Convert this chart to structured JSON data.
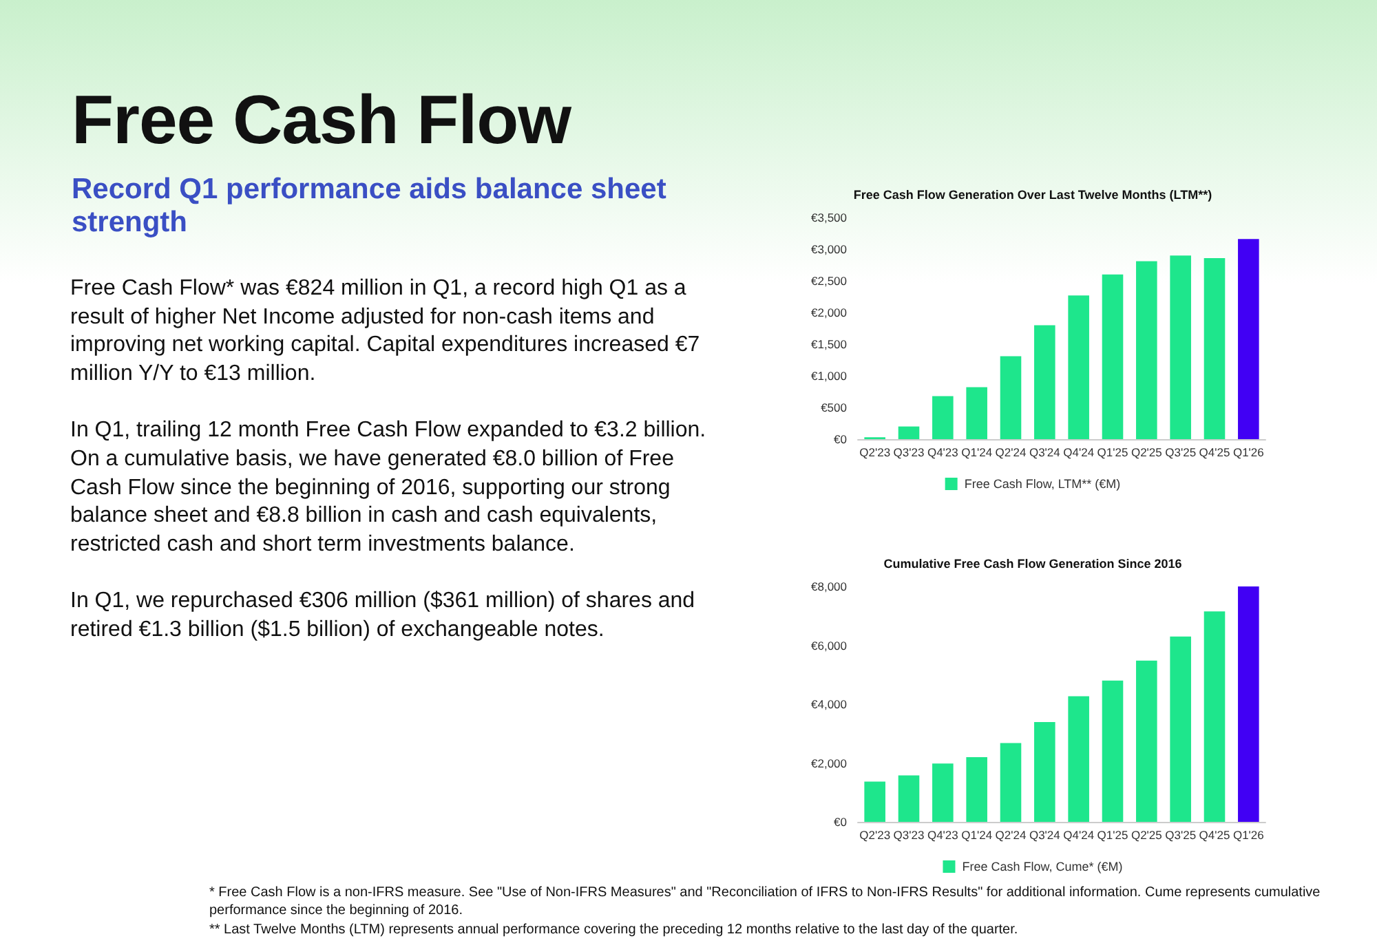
{
  "chart_data": [
    {
      "type": "other",
      "title": "Free Cash Flow",
      "subtitle": "Record Q1 performance aids balance sheet strength",
      "annotations": [
        "Free Cash Flow* was €824 million in Q1, a record high Q1 as a result of higher Net Income adjusted for non-cash items and improving net working capital. Capital expenditures increased €7 million Y/Y to €13 million.",
        "In Q1, trailing 12 month Free Cash Flow expanded to €3.2 billion. On a cumulative basis, we have generated €8.0 billion of Free Cash Flow since the beginning of 2016, supporting our strong balance sheet and €8.8 billion in cash and cash equivalents, restricted cash and short term investments balance.",
        "In Q1, we repurchased €306 million ($361 million) of shares and retired €1.3 billion ($1.5 billion) of exchangeable notes."
      ]
    },
    {
      "type": "bar",
      "title": "Free Cash Flow Generation Over Last Twelve Months (LTM**)",
      "categories": [
        "Q2'23",
        "Q3'23",
        "Q4'23",
        "Q1'24",
        "Q2'24",
        "Q3'24",
        "Q4'24",
        "Q1'25",
        "Q2'25",
        "Q3'25",
        "Q4'25",
        "Q1'26"
      ],
      "series": [
        {
          "name": "Free Cash Flow, LTM** (€M)",
          "color": "#1ee68c",
          "colors": [
            "#1ee68c",
            "#1ee68c",
            "#1ee68c",
            "#1ee68c",
            "#1ee68c",
            "#1ee68c",
            "#1ee68c",
            "#1ee68c",
            "#1ee68c",
            "#1ee68c",
            "#1ee68c",
            "#4100f4"
          ],
          "values": [
            30,
            200,
            680,
            820,
            1310,
            1800,
            2270,
            2600,
            2810,
            2900,
            2860,
            3160
          ]
        }
      ],
      "ylim": [
        0,
        3500
      ],
      "yticks": [
        {
          "value": 0,
          "label": "€0"
        },
        {
          "value": 500,
          "label": "€500"
        },
        {
          "value": 1000,
          "label": "€1,000"
        },
        {
          "value": 1500,
          "label": "€1,500"
        },
        {
          "value": 2000,
          "label": "€2,000"
        },
        {
          "value": 2500,
          "label": "€2,500"
        },
        {
          "value": 3000,
          "label": "€3,000"
        },
        {
          "value": 3500,
          "label": "€3,500"
        }
      ],
      "grid": false,
      "legend": "bottom"
    },
    {
      "type": "bar",
      "title": "Cumulative Free Cash Flow Generation Since 2016",
      "categories": [
        "Q2'23",
        "Q3'23",
        "Q4'23",
        "Q1'24",
        "Q2'24",
        "Q3'24",
        "Q4'24",
        "Q1'25",
        "Q2'25",
        "Q3'25",
        "Q4'25",
        "Q1'26"
      ],
      "series": [
        {
          "name": "Free Cash Flow, Cume* (€M)",
          "color": "#1ee68c",
          "colors": [
            "#1ee68c",
            "#1ee68c",
            "#1ee68c",
            "#1ee68c",
            "#1ee68c",
            "#1ee68c",
            "#1ee68c",
            "#1ee68c",
            "#1ee68c",
            "#1ee68c",
            "#1ee68c",
            "#4100f4"
          ],
          "values": [
            1370,
            1580,
            1980,
            2200,
            2680,
            3390,
            4270,
            4800,
            5480,
            6300,
            7150,
            8000
          ]
        }
      ],
      "ylim": [
        0,
        8000
      ],
      "yticks": [
        {
          "value": 0,
          "label": "€0"
        },
        {
          "value": 2000,
          "label": "€2,000"
        },
        {
          "value": 4000,
          "label": "€4,000"
        },
        {
          "value": 6000,
          "label": "€6,000"
        },
        {
          "value": 8000,
          "label": "€8,000"
        }
      ],
      "grid": false,
      "legend": "bottom"
    },
    {
      "type": "other",
      "annotations": [
        "* Free Cash Flow is a non-IFRS measure. See \"Use of Non-IFRS Measures\" and \"Reconciliation of IFRS to Non-IFRS Results\" for additional information. Cume represents cumulative performance since the beginning of 2016.",
        "** Last Twelve Months (LTM) represents annual performance covering the preceding 12 months relative to the last day of the quarter."
      ]
    }
  ]
}
